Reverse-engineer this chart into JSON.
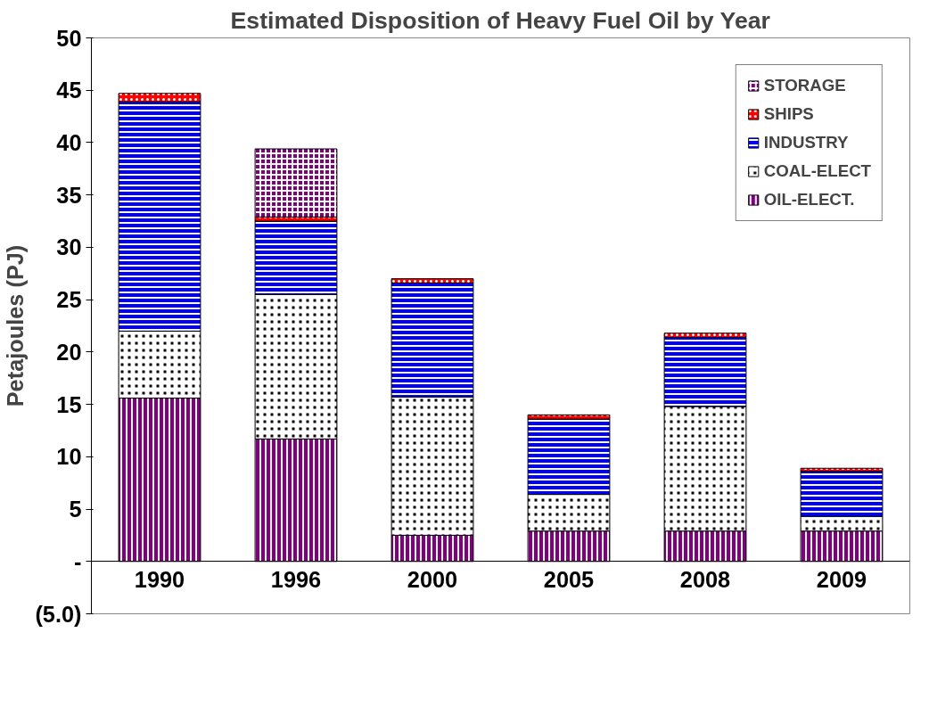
{
  "chart_data": {
    "type": "bar",
    "title": "Estimated Disposition of Heavy Fuel Oil by Year",
    "ylabel": "Petajoules (PJ)",
    "categories": [
      "1990",
      "1996",
      "2000",
      "2005",
      "2008",
      "2009"
    ],
    "stacked": true,
    "series": [
      {
        "name": "OIL-ELECT.",
        "color": "#800080",
        "values": [
          15.6,
          11.7,
          2.5,
          2.9,
          2.9,
          2.9
        ]
      },
      {
        "name": "COAL-ELECT",
        "color": "#000000",
        "values": [
          6.4,
          13.8,
          13.2,
          3.5,
          11.9,
          1.4
        ]
      },
      {
        "name": "INDUSTRY",
        "color": "#0000ff",
        "values": [
          21.9,
          7.0,
          10.9,
          7.2,
          6.6,
          4.3
        ]
      },
      {
        "name": "SHIPS",
        "color": "#ff0000",
        "values": [
          0.8,
          0.4,
          0.4,
          0.4,
          0.4,
          0.3
        ]
      },
      {
        "name": "STORAGE",
        "color": "#800080",
        "values": [
          null,
          6.5,
          null,
          null,
          null,
          null
        ]
      }
    ],
    "ylim": [
      -5,
      50
    ],
    "yticks": [
      {
        "value": -5,
        "label": "(5.0)"
      },
      {
        "value": 0,
        "label": "-"
      },
      5,
      10,
      15,
      20,
      25,
      30,
      35,
      40,
      45,
      50
    ],
    "grid": false,
    "legend": "top right"
  }
}
